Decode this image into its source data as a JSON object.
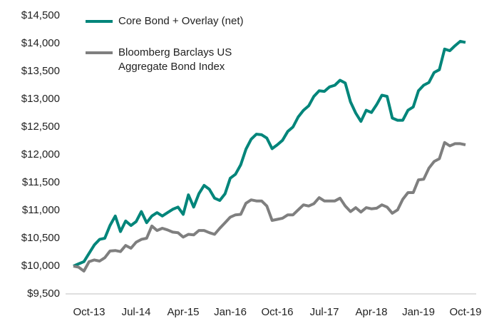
{
  "chart_data": {
    "type": "line",
    "categories": [
      null,
      null,
      null,
      "Oct-13",
      null,
      null,
      null,
      null,
      null,
      null,
      null,
      null,
      "Jul-14",
      null,
      null,
      null,
      null,
      null,
      null,
      null,
      null,
      "Apr-15",
      null,
      null,
      null,
      null,
      null,
      null,
      null,
      null,
      "Jan-16",
      null,
      null,
      null,
      null,
      null,
      null,
      null,
      null,
      "Oct-16",
      null,
      null,
      null,
      null,
      null,
      null,
      null,
      null,
      "Jul-17",
      null,
      null,
      null,
      null,
      null,
      null,
      null,
      null,
      "Apr-18",
      null,
      null,
      null,
      null,
      null,
      null,
      null,
      null,
      "Jan-19",
      null,
      null,
      null,
      null,
      null,
      null,
      null,
      null,
      "Oct-19"
    ],
    "series": [
      {
        "name": "Core Bond + Overlay (net)",
        "color": "#00857a",
        "values": [
          10000,
          10040,
          10080,
          10230,
          10380,
          10480,
          10500,
          10730,
          10900,
          10620,
          10810,
          10730,
          10800,
          10980,
          10780,
          10900,
          10960,
          10900,
          10960,
          11020,
          11060,
          10930,
          11280,
          11060,
          11300,
          11450,
          11380,
          11220,
          11180,
          11300,
          11580,
          11650,
          11820,
          12100,
          12280,
          12370,
          12360,
          12300,
          12110,
          12180,
          12260,
          12420,
          12500,
          12680,
          12800,
          12880,
          13050,
          13150,
          13140,
          13220,
          13250,
          13340,
          13290,
          12950,
          12750,
          12600,
          12800,
          12760,
          12900,
          13070,
          13050,
          12660,
          12620,
          12620,
          12800,
          12860,
          13150,
          13250,
          13300,
          13480,
          13530,
          13900,
          13870,
          13960,
          14040,
          14020
        ]
      },
      {
        "name": "Bloomberg Barclays US Aggregate Bond Index",
        "color": "#7f7f7f",
        "values": [
          10000,
          9980,
          9910,
          10080,
          10110,
          10090,
          10150,
          10270,
          10280,
          10260,
          10370,
          10320,
          10430,
          10480,
          10500,
          10720,
          10640,
          10680,
          10650,
          10610,
          10600,
          10520,
          10570,
          10560,
          10640,
          10640,
          10600,
          10570,
          10680,
          10780,
          10880,
          10920,
          10930,
          11130,
          11190,
          11170,
          11170,
          11080,
          10820,
          10840,
          10860,
          10920,
          10920,
          11010,
          11100,
          11080,
          11120,
          11230,
          11170,
          11170,
          11170,
          11220,
          11080,
          10980,
          11050,
          10970,
          11050,
          11030,
          11040,
          11100,
          11060,
          10950,
          11010,
          11200,
          11320,
          11320,
          11550,
          11560,
          11760,
          11880,
          11930,
          12220,
          12160,
          12200,
          12200,
          12180
        ]
      }
    ],
    "ylim": [
      9500,
      14500
    ],
    "yticks": [
      {
        "value": 9500,
        "label": "$9,500"
      },
      {
        "value": 10000,
        "label": "$10,000"
      },
      {
        "value": 10500,
        "label": "$10,500"
      },
      {
        "value": 11000,
        "label": "$11,000"
      },
      {
        "value": 11500,
        "label": "$11,500"
      },
      {
        "value": 12000,
        "label": "$12,000"
      },
      {
        "value": 12500,
        "label": "$12,500"
      },
      {
        "value": 13000,
        "label": "$13,000"
      },
      {
        "value": 13500,
        "label": "$13,500"
      },
      {
        "value": 14000,
        "label": "$14,000"
      },
      {
        "value": 14500,
        "label": "$14,500"
      }
    ],
    "grid": false,
    "legend": "upper-left"
  }
}
